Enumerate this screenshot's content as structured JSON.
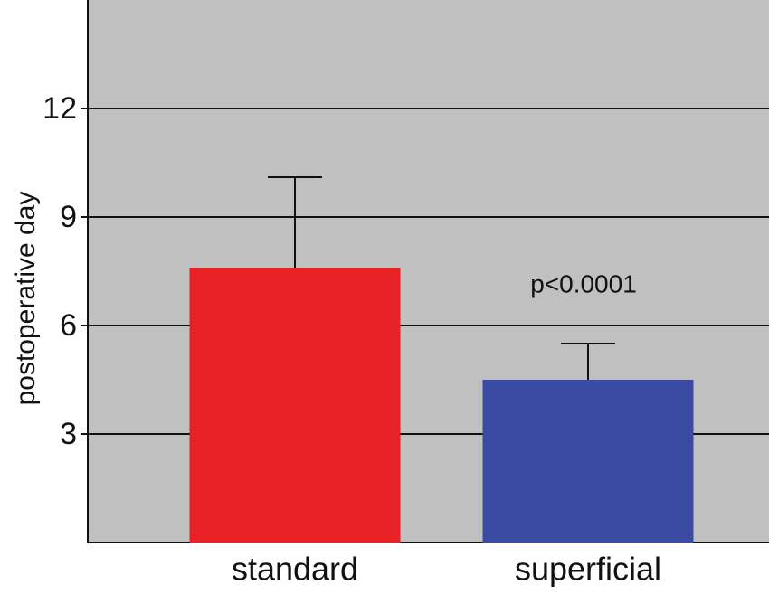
{
  "chart_data": {
    "type": "bar",
    "y_label": "postoperative day",
    "categories": [
      "standard",
      "superficial"
    ],
    "values": [
      7.6,
      4.5
    ],
    "errors": [
      2.5,
      1.0
    ],
    "colors": [
      "#e82127",
      "#3b4aa3"
    ],
    "annotation": "p<0.0001",
    "ylim": [
      0,
      15
    ],
    "yticks": [
      3,
      6,
      9,
      12
    ],
    "grid": true
  }
}
